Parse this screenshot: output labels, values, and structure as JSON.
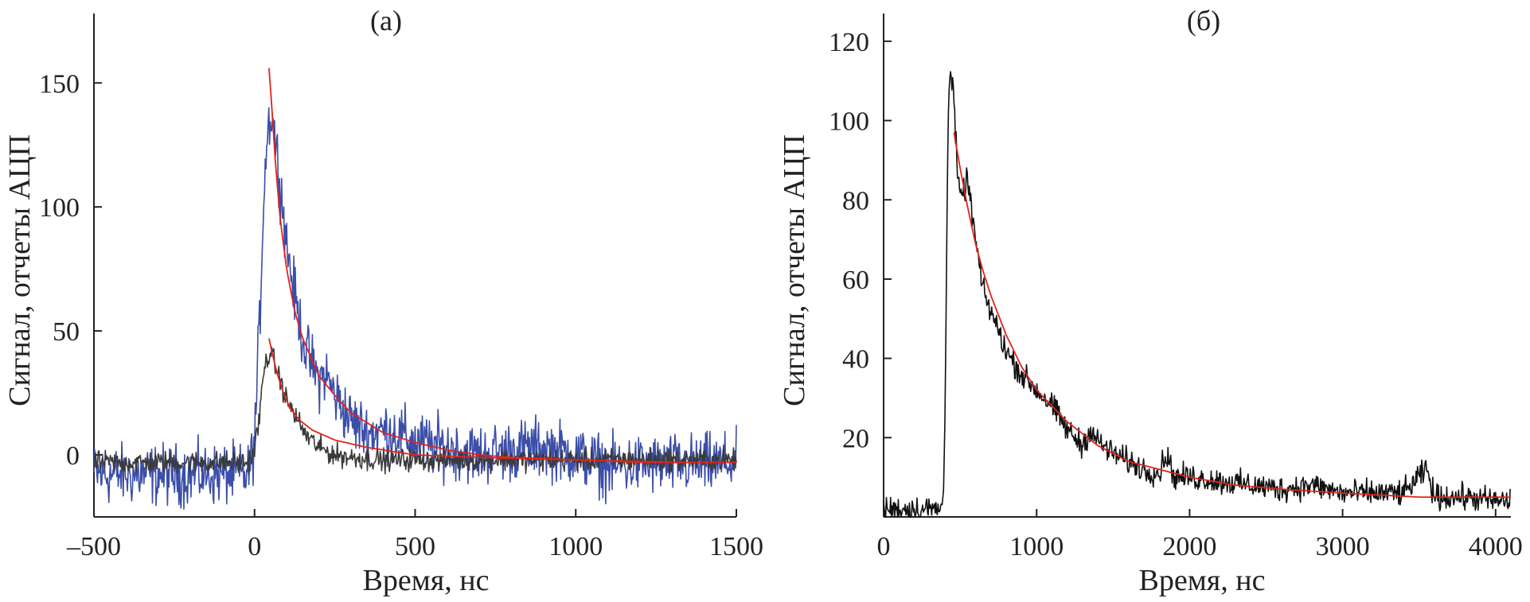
{
  "chart_data": [
    {
      "type": "line",
      "title": "(а)",
      "xlabel": "Время, нс",
      "ylabel": "Сигнал, отчеты АЦП",
      "xlim": [
        -500,
        1500
      ],
      "ylim": [
        -25,
        178
      ],
      "x_ticks": [
        -500,
        0,
        500,
        1000,
        1500
      ],
      "x_tick_labels": [
        "–500",
        "0",
        "500",
        "1000",
        "1500"
      ],
      "y_ticks": [
        0,
        50,
        100,
        150
      ],
      "y_tick_labels": [
        "0",
        "50",
        "100",
        "150"
      ],
      "grid": false,
      "series": [
        {
          "color": "#3b4ea8",
          "style": "noisy",
          "noise": 6,
          "x": [
            -500,
            -20,
            0,
            15,
            30,
            40,
            50,
            60,
            80,
            100,
            130,
            160,
            200,
            220,
            250,
            300,
            350,
            420,
            500,
            600,
            700,
            800,
            900,
            1000,
            1100,
            1200,
            1300,
            1400,
            1500
          ],
          "y": [
            -8,
            -8,
            5,
            50,
            110,
            130,
            138,
            132,
            110,
            85,
            60,
            42,
            30,
            33,
            24,
            14,
            9,
            10,
            5,
            3,
            0,
            2,
            3,
            0,
            -5,
            -4,
            -4,
            -4,
            -3
          ]
        },
        {
          "color": "#3a3a3a",
          "style": "noisy",
          "noise": 2.2,
          "x": [
            -500,
            -20,
            0,
            15,
            30,
            45,
            60,
            80,
            100,
            130,
            160,
            200,
            250,
            300,
            400,
            500,
            600,
            800,
            1000,
            1200,
            1500
          ],
          "y": [
            -3,
            -3,
            2,
            15,
            35,
            41,
            38,
            30,
            22,
            15,
            8,
            3,
            0,
            -1,
            -2,
            -2,
            -2,
            -2,
            -2,
            -2,
            -2
          ]
        },
        {
          "color": "#e0241b",
          "style": "fit",
          "x": [
            45,
            55,
            65,
            80,
            100,
            125,
            150,
            200,
            250,
            300,
            400,
            500,
            600,
            700,
            800,
            1000,
            1200,
            1500
          ],
          "y": [
            156,
            138,
            118,
            95,
            75,
            58,
            47,
            32,
            24,
            17,
            9,
            5,
            2,
            0,
            -1,
            -2,
            -3,
            -3
          ]
        },
        {
          "color": "#e0241b",
          "style": "fit",
          "x": [
            45,
            55,
            70,
            90,
            110,
            140,
            180,
            250,
            350,
            500,
            700,
            1000,
            1300,
            1500
          ],
          "y": [
            47,
            41,
            33,
            25,
            19,
            14,
            10,
            6,
            3,
            0,
            -1,
            -2,
            -3,
            -3
          ]
        }
      ]
    },
    {
      "type": "line",
      "title": "(б)",
      "xlabel": "Время, нс",
      "ylabel": "Сигнал, отчеты АЦП",
      "xlim": [
        0,
        4100
      ],
      "ylim": [
        0,
        127
      ],
      "x_ticks": [
        0,
        1000,
        2000,
        3000,
        4000
      ],
      "x_tick_labels": [
        "0",
        "1000",
        "2000",
        "3000",
        "4000"
      ],
      "y_ticks": [
        20,
        40,
        60,
        80,
        100,
        120
      ],
      "y_tick_labels": [
        "20",
        "40",
        "60",
        "80",
        "100",
        "120"
      ],
      "grid": false,
      "series": [
        {
          "color": "#111111",
          "style": "noisy",
          "noise": 1.6,
          "x": [
            0,
            380,
            395,
            405,
            415,
            425,
            440,
            460,
            480,
            500,
            550,
            600,
            650,
            700,
            800,
            900,
            1000,
            1100,
            1200,
            1300,
            1350,
            1400,
            1500,
            1600,
            1700,
            1800,
            1850,
            1900,
            2000,
            2200,
            2400,
            2600,
            2800,
            3000,
            3200,
            3400,
            3500,
            3550,
            3600,
            3800,
            4000,
            4100
          ],
          "y": [
            2,
            2,
            10,
            40,
            80,
            108,
            112,
            105,
            88,
            80,
            85,
            70,
            57,
            52,
            42,
            36,
            32,
            28,
            22,
            18,
            22,
            19,
            16,
            14,
            12,
            11,
            16,
            10,
            10,
            9,
            8,
            7,
            8,
            6,
            6,
            6,
            10,
            12,
            5,
            5,
            4,
            4
          ]
        },
        {
          "color": "#e0241b",
          "style": "fit",
          "x": [
            460,
            500,
            550,
            600,
            650,
            700,
            800,
            900,
            1000,
            1200,
            1400,
            1600,
            1800,
            2000,
            2300,
            2600,
            3000,
            3500,
            4100
          ],
          "y": [
            97,
            88,
            78,
            69,
            62,
            56,
            46,
            38,
            32,
            24,
            18,
            14,
            12,
            10,
            8,
            7,
            6,
            5,
            5
          ]
        }
      ]
    }
  ]
}
